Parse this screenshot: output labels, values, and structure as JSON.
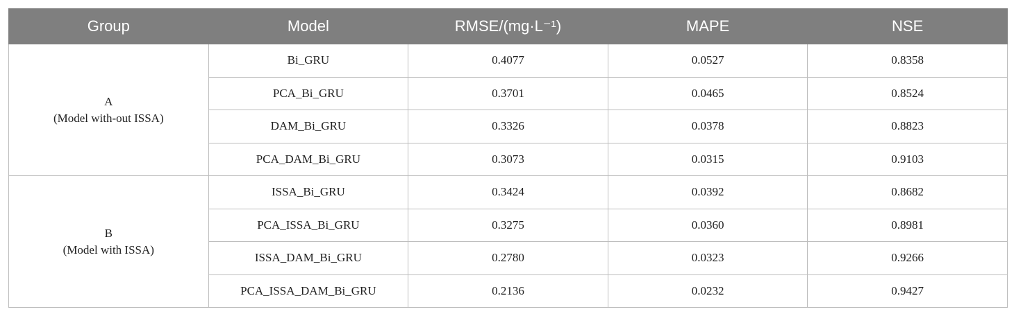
{
  "table": {
    "header": [
      "Group",
      "Model",
      "RMSE/(mg·L⁻¹)",
      "MAPE",
      "NSE"
    ],
    "groups": [
      {
        "label": "A",
        "note": "(Model with-out ISSA)",
        "rows": [
          [
            "Bi_GRU",
            "0.4077",
            "0.0527",
            "0.8358"
          ],
          [
            "PCA_Bi_GRU",
            "0.3701",
            "0.0465",
            "0.8524"
          ],
          [
            "DAM_Bi_GRU",
            "0.3326",
            "0.0378",
            "0.8823"
          ],
          [
            "PCA_DAM_Bi_GRU",
            "0.3073",
            "0.0315",
            "0.9103"
          ]
        ]
      },
      {
        "label": "B",
        "note": "(Model with ISSA)",
        "rows": [
          [
            "ISSA_Bi_GRU",
            "0.3424",
            "0.0392",
            "0.8682"
          ],
          [
            "PCA_ISSA_Bi_GRU",
            "0.3275",
            "0.0360",
            "0.8981"
          ],
          [
            "ISSA_DAM_Bi_GRU",
            "0.2780",
            "0.0323",
            "0.9266"
          ],
          [
            "PCA_ISSA_DAM_Bi_GRU",
            "0.2136",
            "0.0232",
            "0.9427"
          ]
        ]
      }
    ]
  }
}
